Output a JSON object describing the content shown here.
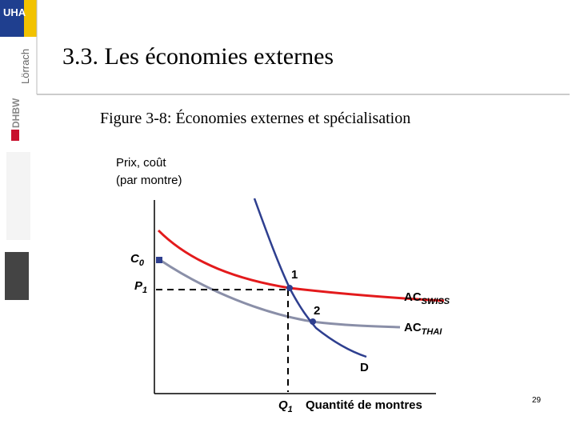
{
  "title": "3.3. Les économies externes",
  "figure": {
    "number": "Figure 3-8",
    "caption": "Économies externes et spécialisation"
  },
  "y_axis_label": [
    "Prix, coût",
    "(par montre)"
  ],
  "x_axis_label": "Quantité de montres",
  "labels": {
    "c0": {
      "main": "C",
      "sub": "0"
    },
    "p1": {
      "main": "P",
      "sub": "1"
    },
    "q1": {
      "main": "Q",
      "sub": "1"
    },
    "point1": "1",
    "point2": "2",
    "ac_swiss": {
      "main": "AC",
      "sub": "SWISS"
    },
    "ac_thai": {
      "main": "AC",
      "sub": "THAI"
    },
    "demand": "D"
  },
  "sidebar": {
    "logo": "UHA",
    "city": "Lörrach",
    "school": "DHBW"
  },
  "page_number": "29"
}
